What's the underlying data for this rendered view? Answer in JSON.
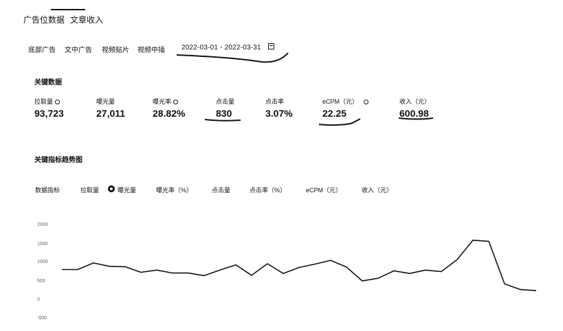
{
  "tabs": [
    {
      "label": "广告位数据",
      "active": true
    },
    {
      "label": "文章收入",
      "active": false
    }
  ],
  "ad_types": [
    "底部广告",
    "文中广告",
    "视频贴片",
    "视频中插"
  ],
  "date_range": "2022-03-01 - 2022-03-31",
  "key_data": {
    "title": "关键数据",
    "metrics": [
      {
        "label": "拉取量",
        "value": "93,723",
        "info": true
      },
      {
        "label": "曝光量",
        "value": "27,011",
        "info": false
      },
      {
        "label": "曝光率",
        "value": "28.82%",
        "info": true
      },
      {
        "label": "点击量",
        "value": "830",
        "info": false
      },
      {
        "label": "点击率",
        "value": "3.07%",
        "info": false
      },
      {
        "label": "eCPM（元）",
        "value": "22.25",
        "info": true
      },
      {
        "label": "收入（元）",
        "value": "600.98",
        "info": false
      }
    ]
  },
  "trend": {
    "title": "关键指标趋势图",
    "metric_label": "数据指标",
    "options": [
      "拉取量",
      "曝光量",
      "曝光率（%）",
      "点击量",
      "点击率（%）",
      "eCPM（元）",
      "收入（元）"
    ],
    "selected": "曝光量"
  },
  "chart_data": {
    "type": "line",
    "title": "",
    "xlabel": "",
    "ylabel": "",
    "yticks": [
      "2000",
      "1500",
      "1000",
      "500",
      "0",
      "-500"
    ],
    "ylim": [
      -500,
      2000
    ],
    "x": [
      1,
      2,
      3,
      4,
      5,
      6,
      7,
      8,
      9,
      10,
      11,
      12,
      13,
      14,
      15,
      16,
      17,
      18,
      19,
      20,
      21,
      22,
      23,
      24,
      25,
      26,
      27,
      28,
      29,
      30,
      31
    ],
    "series": [
      {
        "name": "",
        "values": [
          815,
          815,
          990,
          900,
          890,
          740,
          800,
          720,
          720,
          650,
          800,
          940,
          660,
          970,
          710,
          870,
          960,
          1060,
          880,
          510,
          580,
          780,
          710,
          800,
          760,
          1080,
          1600,
          1570,
          430,
          280,
          250
        ]
      }
    ]
  }
}
